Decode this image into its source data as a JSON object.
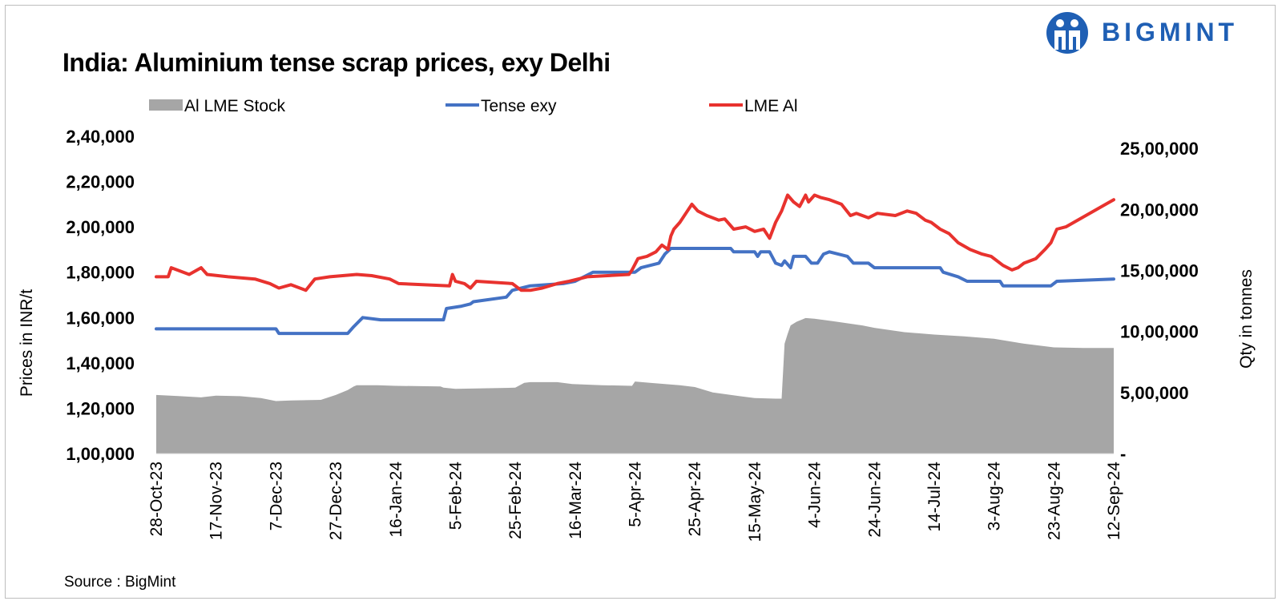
{
  "header": {
    "title": "India: Aluminium tense scrap prices, exy Delhi",
    "source": "Source : BigMint",
    "logo_text": "BIGMINT"
  },
  "colors": {
    "stock_fill": "#a6a6a6",
    "tense_line": "#4472c4",
    "lme_line": "#e8322e",
    "brand": "#1f5fb4"
  },
  "chart_data": {
    "type": "line",
    "legend": [
      "Al LME Stock",
      "Tense exy",
      "LME Al"
    ],
    "legend_position": "top",
    "ylabel": "Prices in INR/t",
    "y2label": "Qty in tonnes",
    "ylim": [
      100000,
      240000
    ],
    "y2lim": [
      0,
      2600000
    ],
    "yticks": [
      "1,00,000",
      "1,20,000",
      "1,40,000",
      "1,60,000",
      "1,80,000",
      "2,00,000",
      "2,20,000",
      "2,40,000"
    ],
    "y2ticks": [
      "-",
      "5,00,000",
      "10,00,000",
      "15,00,000",
      "20,00,000",
      "25,00,000"
    ],
    "xticks": [
      "28-Oct-23",
      "17-Nov-23",
      "7-Dec-23",
      "27-Dec-23",
      "16-Jan-24",
      "5-Feb-24",
      "25-Feb-24",
      "16-Mar-24",
      "5-Apr-24",
      "25-Apr-24",
      "15-May-24",
      "4-Jun-24",
      "24-Jun-24",
      "14-Jul-24",
      "3-Aug-24",
      "23-Aug-24",
      "12-Sep-24"
    ],
    "series": [
      {
        "name": "Al LME Stock",
        "kind": "area",
        "axis": "right",
        "points": [
          [
            "2023-10-28",
            480000
          ],
          [
            "2023-11-05",
            470000
          ],
          [
            "2023-11-12",
            460000
          ],
          [
            "2023-11-17",
            475000
          ],
          [
            "2023-11-25",
            470000
          ],
          [
            "2023-12-02",
            455000
          ],
          [
            "2023-12-07",
            430000
          ],
          [
            "2023-12-12",
            435000
          ],
          [
            "2023-12-22",
            440000
          ],
          [
            "2023-12-27",
            480000
          ],
          [
            "2023-12-31",
            520000
          ],
          [
            "2024-01-02",
            550000
          ],
          [
            "2024-01-03",
            560000
          ],
          [
            "2024-01-10",
            560000
          ],
          [
            "2024-01-16",
            555000
          ],
          [
            "2024-01-31",
            550000
          ],
          [
            "2024-02-01",
            540000
          ],
          [
            "2024-02-05",
            530000
          ],
          [
            "2024-02-25",
            540000
          ],
          [
            "2024-02-28",
            580000
          ],
          [
            "2024-03-01",
            585000
          ],
          [
            "2024-03-10",
            585000
          ],
          [
            "2024-03-15",
            570000
          ],
          [
            "2024-03-25",
            560000
          ],
          [
            "2024-04-04",
            555000
          ],
          [
            "2024-04-05",
            590000
          ],
          [
            "2024-04-10",
            580000
          ],
          [
            "2024-04-20",
            560000
          ],
          [
            "2024-04-25",
            545000
          ],
          [
            "2024-05-01",
            500000
          ],
          [
            "2024-05-10",
            470000
          ],
          [
            "2024-05-15",
            455000
          ],
          [
            "2024-05-22",
            450000
          ],
          [
            "2024-05-24",
            450000
          ],
          [
            "2024-05-25",
            900000
          ],
          [
            "2024-05-26",
            980000
          ],
          [
            "2024-05-27",
            1050000
          ],
          [
            "2024-05-29",
            1080000
          ],
          [
            "2024-05-31",
            1100000
          ],
          [
            "2024-06-01",
            1110000
          ],
          [
            "2024-06-04",
            1105000
          ],
          [
            "2024-06-10",
            1085000
          ],
          [
            "2024-06-20",
            1050000
          ],
          [
            "2024-06-24",
            1030000
          ],
          [
            "2024-07-04",
            995000
          ],
          [
            "2024-07-14",
            975000
          ],
          [
            "2024-07-24",
            960000
          ],
          [
            "2024-08-03",
            940000
          ],
          [
            "2024-08-13",
            900000
          ],
          [
            "2024-08-23",
            870000
          ],
          [
            "2024-09-02",
            865000
          ],
          [
            "2024-09-12",
            865000
          ]
        ]
      },
      {
        "name": "Tense exy",
        "kind": "line",
        "axis": "left",
        "points": [
          [
            "2023-10-28",
            155000
          ],
          [
            "2023-12-07",
            155000
          ],
          [
            "2023-12-08",
            153000
          ],
          [
            "2023-12-31",
            153000
          ],
          [
            "2024-01-02",
            156000
          ],
          [
            "2024-01-05",
            160000
          ],
          [
            "2024-01-11",
            159000
          ],
          [
            "2024-02-01",
            159000
          ],
          [
            "2024-02-02",
            164000
          ],
          [
            "2024-02-07",
            165000
          ],
          [
            "2024-02-10",
            166000
          ],
          [
            "2024-02-11",
            167000
          ],
          [
            "2024-02-22",
            169000
          ],
          [
            "2024-02-24",
            172000
          ],
          [
            "2024-02-27",
            173000
          ],
          [
            "2024-03-01",
            174000
          ],
          [
            "2024-03-12",
            175000
          ],
          [
            "2024-03-16",
            176000
          ],
          [
            "2024-03-22",
            180000
          ],
          [
            "2024-04-05",
            180000
          ],
          [
            "2024-04-07",
            182000
          ],
          [
            "2024-04-13",
            184000
          ],
          [
            "2024-04-15",
            188000
          ],
          [
            "2024-04-17",
            190500
          ],
          [
            "2024-05-07",
            190500
          ],
          [
            "2024-05-08",
            189000
          ],
          [
            "2024-05-15",
            189000
          ],
          [
            "2024-05-16",
            187000
          ],
          [
            "2024-05-17",
            189000
          ],
          [
            "2024-05-20",
            189000
          ],
          [
            "2024-05-22",
            184000
          ],
          [
            "2024-05-24",
            183000
          ],
          [
            "2024-05-25",
            185000
          ],
          [
            "2024-05-27",
            182000
          ],
          [
            "2024-05-28",
            187000
          ],
          [
            "2024-06-01",
            187000
          ],
          [
            "2024-06-03",
            184000
          ],
          [
            "2024-06-05",
            184000
          ],
          [
            "2024-06-07",
            188000
          ],
          [
            "2024-06-09",
            189000
          ],
          [
            "2024-06-15",
            187000
          ],
          [
            "2024-06-17",
            184000
          ],
          [
            "2024-06-22",
            184000
          ],
          [
            "2024-06-24",
            182000
          ],
          [
            "2024-07-16",
            182000
          ],
          [
            "2024-07-17",
            180000
          ],
          [
            "2024-07-22",
            178000
          ],
          [
            "2024-07-25",
            176000
          ],
          [
            "2024-08-05",
            176000
          ],
          [
            "2024-08-06",
            174000
          ],
          [
            "2024-08-22",
            174000
          ],
          [
            "2024-08-24",
            176000
          ],
          [
            "2024-09-12",
            177000
          ]
        ]
      },
      {
        "name": "LME Al",
        "kind": "line",
        "axis": "left",
        "points": [
          [
            "2023-10-28",
            178000
          ],
          [
            "2023-11-01",
            178000
          ],
          [
            "2023-11-02",
            182000
          ],
          [
            "2023-11-04",
            181000
          ],
          [
            "2023-11-08",
            179000
          ],
          [
            "2023-11-12",
            182000
          ],
          [
            "2023-11-14",
            179000
          ],
          [
            "2023-11-21",
            178000
          ],
          [
            "2023-11-30",
            177000
          ],
          [
            "2023-12-05",
            175000
          ],
          [
            "2023-12-08",
            173000
          ],
          [
            "2023-12-12",
            174500
          ],
          [
            "2023-12-17",
            172000
          ],
          [
            "2023-12-20",
            177000
          ],
          [
            "2023-12-25",
            178000
          ],
          [
            "2024-01-03",
            179000
          ],
          [
            "2024-01-08",
            178500
          ],
          [
            "2024-01-14",
            177000
          ],
          [
            "2024-01-17",
            175000
          ],
          [
            "2024-02-03",
            174000
          ],
          [
            "2024-02-04",
            179000
          ],
          [
            "2024-02-05",
            176000
          ],
          [
            "2024-02-08",
            175000
          ],
          [
            "2024-02-10",
            173000
          ],
          [
            "2024-02-12",
            176000
          ],
          [
            "2024-02-24",
            175000
          ],
          [
            "2024-02-27",
            172000
          ],
          [
            "2024-03-01",
            172000
          ],
          [
            "2024-03-05",
            173000
          ],
          [
            "2024-03-10",
            175000
          ],
          [
            "2024-03-14",
            176000
          ],
          [
            "2024-03-20",
            178000
          ],
          [
            "2024-04-03",
            179000
          ],
          [
            "2024-04-04",
            181000
          ],
          [
            "2024-04-06",
            186000
          ],
          [
            "2024-04-09",
            187000
          ],
          [
            "2024-04-12",
            189000
          ],
          [
            "2024-04-14",
            192000
          ],
          [
            "2024-04-16",
            190000
          ],
          [
            "2024-04-17",
            196000
          ],
          [
            "2024-04-18",
            199000
          ],
          [
            "2024-04-20",
            202000
          ],
          [
            "2024-04-22",
            206000
          ],
          [
            "2024-04-24",
            210000
          ],
          [
            "2024-04-26",
            207000
          ],
          [
            "2024-04-29",
            205000
          ],
          [
            "2024-05-03",
            203000
          ],
          [
            "2024-05-05",
            203500
          ],
          [
            "2024-05-08",
            199000
          ],
          [
            "2024-05-12",
            200000
          ],
          [
            "2024-05-15",
            198000
          ],
          [
            "2024-05-18",
            199000
          ],
          [
            "2024-05-20",
            195000
          ],
          [
            "2024-05-22",
            202000
          ],
          [
            "2024-05-24",
            207000
          ],
          [
            "2024-05-26",
            214000
          ],
          [
            "2024-05-28",
            211000
          ],
          [
            "2024-05-30",
            209000
          ],
          [
            "2024-06-01",
            214000
          ],
          [
            "2024-06-02",
            211000
          ],
          [
            "2024-06-04",
            214000
          ],
          [
            "2024-06-06",
            213000
          ],
          [
            "2024-06-09",
            212000
          ],
          [
            "2024-06-13",
            210000
          ],
          [
            "2024-06-16",
            205000
          ],
          [
            "2024-06-18",
            206000
          ],
          [
            "2024-06-22",
            204000
          ],
          [
            "2024-06-25",
            206000
          ],
          [
            "2024-07-01",
            205000
          ],
          [
            "2024-07-05",
            207000
          ],
          [
            "2024-07-08",
            206000
          ],
          [
            "2024-07-11",
            203000
          ],
          [
            "2024-07-13",
            202000
          ],
          [
            "2024-07-16",
            199000
          ],
          [
            "2024-07-19",
            197000
          ],
          [
            "2024-07-22",
            193000
          ],
          [
            "2024-07-26",
            190000
          ],
          [
            "2024-07-30",
            188000
          ],
          [
            "2024-08-02",
            187000
          ],
          [
            "2024-08-06",
            183000
          ],
          [
            "2024-08-09",
            181000
          ],
          [
            "2024-08-11",
            182000
          ],
          [
            "2024-08-13",
            184000
          ],
          [
            "2024-08-17",
            186000
          ],
          [
            "2024-08-20",
            190000
          ],
          [
            "2024-08-22",
            193000
          ],
          [
            "2024-08-24",
            199000
          ],
          [
            "2024-08-27",
            200000
          ],
          [
            "2024-09-12",
            212000
          ]
        ]
      }
    ]
  }
}
